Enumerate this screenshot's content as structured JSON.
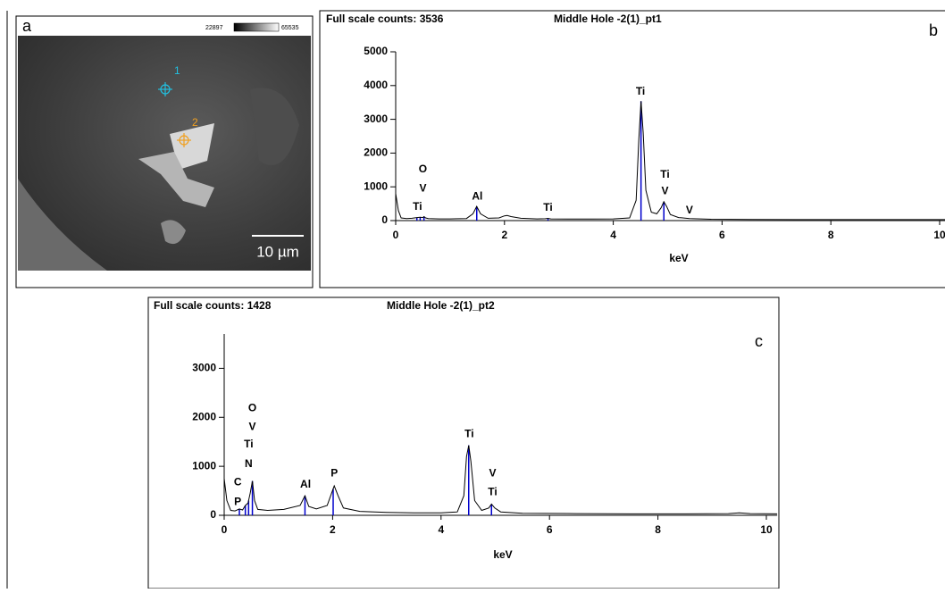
{
  "image_panel": {
    "label": "a",
    "scale_min": "22897",
    "scale_max": "65535",
    "points": [
      "1",
      "2"
    ],
    "scale_bar": "10 µm"
  },
  "chart_data": [
    {
      "type": "line",
      "panel": "b",
      "title": "Full scale counts: 3536",
      "subtitle": "Middle Hole -2(1)_pt1",
      "x_label": "keV",
      "color": "#000000",
      "marker_color": "#0000cc",
      "xlim": [
        0,
        10.1
      ],
      "ylim": [
        0,
        5000
      ],
      "xticks": [
        0,
        2,
        4,
        6,
        8,
        10
      ],
      "yticks": [
        0,
        1000,
        2000,
        3000,
        4000,
        5000
      ],
      "x": [
        0,
        0.05,
        0.1,
        0.2,
        0.3,
        0.39,
        0.45,
        0.5,
        0.52,
        0.55,
        0.6,
        0.8,
        1.0,
        1.3,
        1.42,
        1.49,
        1.56,
        1.7,
        1.9,
        2.0,
        2.05,
        2.12,
        2.3,
        2.6,
        2.75,
        2.8,
        2.85,
        3.2,
        3.6,
        4.0,
        4.3,
        4.42,
        4.47,
        4.51,
        4.55,
        4.6,
        4.7,
        4.8,
        4.88,
        4.93,
        4.98,
        5.05,
        5.2,
        5.4,
        5.8,
        6.5,
        7.5,
        8.5,
        9.5,
        10.1
      ],
      "values": [
        800,
        300,
        80,
        60,
        70,
        90,
        100,
        90,
        120,
        80,
        60,
        50,
        50,
        60,
        200,
        420,
        200,
        70,
        80,
        140,
        150,
        120,
        70,
        50,
        55,
        65,
        50,
        45,
        45,
        50,
        80,
        600,
        2400,
        3536,
        2600,
        900,
        250,
        200,
        380,
        560,
        420,
        180,
        90,
        60,
        40,
        35,
        30,
        30,
        30,
        30
      ],
      "marker_lines": [
        0.39,
        0.45,
        0.52,
        1.49,
        2.8,
        4.51,
        4.93
      ],
      "annotations": [
        {
          "text": "O",
          "x": 0.5,
          "y": 1510
        },
        {
          "text": "V",
          "x": 0.5,
          "y": 950
        },
        {
          "text": "Ti",
          "x": 0.4,
          "y": 400
        },
        {
          "text": "Al",
          "x": 1.5,
          "y": 710
        },
        {
          "text": "Ti",
          "x": 2.8,
          "y": 370
        },
        {
          "text": "Ti",
          "x": 4.5,
          "y": 3810
        },
        {
          "text": "Ti",
          "x": 4.95,
          "y": 1350
        },
        {
          "text": "V",
          "x": 4.95,
          "y": 870
        },
        {
          "text": "V",
          "x": 5.4,
          "y": 290
        }
      ]
    },
    {
      "type": "line",
      "panel": "c",
      "title": "Full scale counts: 1428",
      "subtitle": "Middle Hole -2(1)_pt2",
      "x_label": "keV",
      "color": "#000000",
      "marker_color": "#0000cc",
      "xlim": [
        0,
        10.2
      ],
      "ylim": [
        0,
        3700
      ],
      "xticks": [
        0,
        2,
        4,
        6,
        8,
        10
      ],
      "yticks": [
        0,
        1000,
        2000,
        3000
      ],
      "x": [
        0,
        0.05,
        0.12,
        0.2,
        0.28,
        0.34,
        0.39,
        0.44,
        0.48,
        0.52,
        0.56,
        0.62,
        0.8,
        1.1,
        1.4,
        1.49,
        1.56,
        1.7,
        1.9,
        1.98,
        2.03,
        2.1,
        2.2,
        2.5,
        3.0,
        3.5,
        4.0,
        4.3,
        4.42,
        4.47,
        4.51,
        4.55,
        4.62,
        4.75,
        4.88,
        4.93,
        4.99,
        5.1,
        5.5,
        6.5,
        7.5,
        8.5,
        9.3,
        9.5,
        9.7,
        10.2
      ],
      "values": [
        750,
        300,
        100,
        90,
        130,
        110,
        200,
        250,
        450,
        700,
        300,
        120,
        100,
        120,
        200,
        400,
        180,
        130,
        200,
        450,
        600,
        400,
        150,
        80,
        60,
        50,
        50,
        70,
        400,
        1200,
        1428,
        1100,
        300,
        100,
        150,
        230,
        150,
        70,
        40,
        35,
        30,
        30,
        35,
        50,
        35,
        30
      ],
      "marker_lines": [
        0.28,
        0.39,
        0.45,
        0.52,
        1.49,
        2.01,
        4.51,
        4.93
      ],
      "annotations": [
        {
          "text": "O",
          "x": 0.52,
          "y": 2180
        },
        {
          "text": "V",
          "x": 0.52,
          "y": 1800
        },
        {
          "text": "Ti",
          "x": 0.45,
          "y": 1440
        },
        {
          "text": "N",
          "x": 0.45,
          "y": 1040
        },
        {
          "text": "C",
          "x": 0.25,
          "y": 670
        },
        {
          "text": "P",
          "x": 0.25,
          "y": 270
        },
        {
          "text": "Al",
          "x": 1.5,
          "y": 620
        },
        {
          "text": "P",
          "x": 2.03,
          "y": 850
        },
        {
          "text": "Ti",
          "x": 4.52,
          "y": 1650
        },
        {
          "text": "V",
          "x": 4.95,
          "y": 850
        },
        {
          "text": "Ti",
          "x": 4.95,
          "y": 470
        }
      ]
    }
  ]
}
